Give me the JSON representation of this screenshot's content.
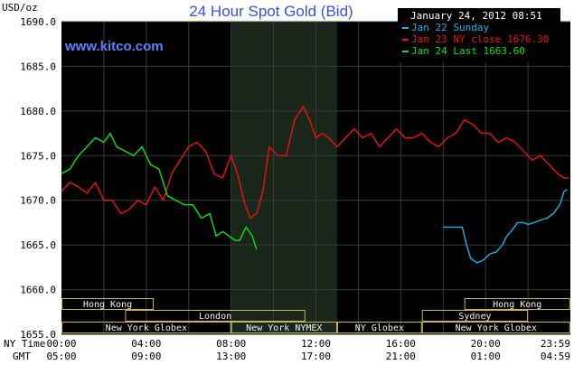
{
  "chart_data": {
    "type": "line",
    "title": "24 Hour Spot Gold (Bid)",
    "watermark": "www.kitco.com",
    "ylabel": "USD/oz",
    "timestamp": "January 24, 2012 08:51",
    "ylim": [
      1655,
      1690
    ],
    "y_ticks": [
      "1690.0",
      "1685.0",
      "1680.0",
      "1675.0",
      "1670.0",
      "1665.0",
      "1660.0",
      "1655.0"
    ],
    "x_ticks_ny": [
      "00:00",
      "04:00",
      "08:00",
      "12:00",
      "16:00",
      "20:00",
      "23:59"
    ],
    "x_ticks_gmt": [
      "05:00",
      "09:00",
      "13:00",
      "17:00",
      "21:00",
      "01:00",
      "04:59"
    ],
    "x_axis_labels": [
      "NY Time",
      "GMT"
    ],
    "shaded_period": [
      "08:00",
      "13:00"
    ],
    "colors": {
      "background": "#000000",
      "grid": "#444444",
      "jan22": "#1ab2e6",
      "jan23": "#ee1111",
      "jan24": "#11e011",
      "title": "#3b4fe0",
      "session": "#c8b45a"
    },
    "legend": [
      {
        "label": "Jan 22 Sunday",
        "color": "#1ab2e6"
      },
      {
        "label": "Jan 23 NY close 1676.30",
        "color": "#ee1111"
      },
      {
        "label": "Jan 24 Last 1663.60",
        "color": "#11e011"
      }
    ],
    "sessions": [
      {
        "name": "Hong Kong",
        "row": 0,
        "start": 0.0,
        "end": 4.35
      },
      {
        "name": "Hong Kong",
        "row": 0,
        "start": 19.0,
        "end": 23.99
      },
      {
        "name": "London",
        "row": 1,
        "start": 3.0,
        "end": 11.5
      },
      {
        "name": "Sydney",
        "row": 1,
        "start": 17.0,
        "end": 22.0
      },
      {
        "name": "New York Globex",
        "row": 2,
        "start": 0.0,
        "end": 8.0
      },
      {
        "name": "New York NYMEX",
        "row": 2,
        "start": 8.0,
        "end": 13.0
      },
      {
        "name": "NY Globex",
        "row": 2,
        "start": 13.0,
        "end": 17.0
      },
      {
        "name": "New York Globex",
        "row": 2,
        "start": 17.0,
        "end": 23.99
      }
    ],
    "series": [
      {
        "name": "Jan 22 Sunday",
        "color": "#1ab2e6",
        "x": [
          18.0,
          18.5,
          18.9,
          19.1,
          19.3,
          19.6,
          19.9,
          20.2,
          20.5,
          20.8,
          21.0,
          21.2,
          21.5,
          21.8,
          22.0,
          22.3,
          22.6,
          22.9,
          23.2,
          23.5,
          23.7,
          23.85
        ],
        "values": [
          1667.0,
          1667.0,
          1667.0,
          1665.0,
          1663.5,
          1663.0,
          1663.3,
          1664.0,
          1664.2,
          1665.0,
          1666.0,
          1666.5,
          1667.5,
          1667.5,
          1667.3,
          1667.5,
          1667.8,
          1668.0,
          1668.5,
          1669.5,
          1671.0,
          1671.2
        ]
      },
      {
        "name": "Jan 23 NY close 1676.30",
        "color": "#ee1111",
        "x": [
          0.0,
          0.4,
          0.8,
          1.2,
          1.6,
          2.0,
          2.4,
          2.8,
          3.2,
          3.6,
          4.0,
          4.4,
          4.8,
          5.2,
          5.6,
          6.0,
          6.4,
          6.8,
          7.2,
          7.6,
          8.0,
          8.3,
          8.6,
          8.9,
          9.2,
          9.5,
          9.8,
          10.2,
          10.6,
          11.0,
          11.4,
          11.7,
          12.0,
          12.3,
          12.6,
          13.0,
          13.4,
          13.8,
          14.2,
          14.6,
          15.0,
          15.4,
          15.8,
          16.2,
          16.6,
          17.0,
          17.4,
          17.8,
          18.2,
          18.6,
          19.0,
          19.4,
          19.8,
          20.2,
          20.6,
          21.0,
          21.4,
          21.8,
          22.2,
          22.6,
          23.0,
          23.4,
          23.7,
          23.9
        ],
        "values": [
          1671.0,
          1672.0,
          1671.5,
          1670.8,
          1672.0,
          1670.0,
          1670.0,
          1668.5,
          1669.0,
          1670.0,
          1669.5,
          1671.5,
          1670.0,
          1673.0,
          1674.5,
          1676.0,
          1676.5,
          1675.5,
          1673.0,
          1672.5,
          1675.0,
          1673.0,
          1670.0,
          1668.0,
          1668.5,
          1671.0,
          1676.0,
          1675.0,
          1675.0,
          1679.0,
          1680.5,
          1679.0,
          1677.0,
          1677.5,
          1677.0,
          1676.0,
          1677.0,
          1678.0,
          1677.0,
          1677.5,
          1676.0,
          1677.0,
          1678.0,
          1677.0,
          1677.0,
          1677.5,
          1676.5,
          1676.0,
          1677.0,
          1677.5,
          1679.0,
          1678.5,
          1677.5,
          1677.5,
          1676.5,
          1677.0,
          1676.5,
          1675.5,
          1674.5,
          1675.0,
          1674.0,
          1673.0,
          1672.5,
          1672.5
        ]
      },
      {
        "name": "Jan 24 Last 1663.60",
        "color": "#11e011",
        "x": [
          0.0,
          0.4,
          0.8,
          1.2,
          1.6,
          2.0,
          2.3,
          2.6,
          3.0,
          3.4,
          3.8,
          4.2,
          4.6,
          5.0,
          5.4,
          5.8,
          6.2,
          6.6,
          7.0,
          7.3,
          7.6,
          7.9,
          8.2,
          8.4,
          8.7,
          9.0,
          9.2
        ],
        "values": [
          1673.0,
          1673.5,
          1675.0,
          1676.0,
          1677.0,
          1676.5,
          1677.5,
          1676.0,
          1675.5,
          1675.0,
          1676.0,
          1674.0,
          1673.5,
          1670.5,
          1670.0,
          1669.5,
          1669.5,
          1668.0,
          1668.5,
          1666.0,
          1666.5,
          1666.0,
          1665.5,
          1665.5,
          1667.0,
          1666.0,
          1664.5
        ]
      }
    ]
  }
}
